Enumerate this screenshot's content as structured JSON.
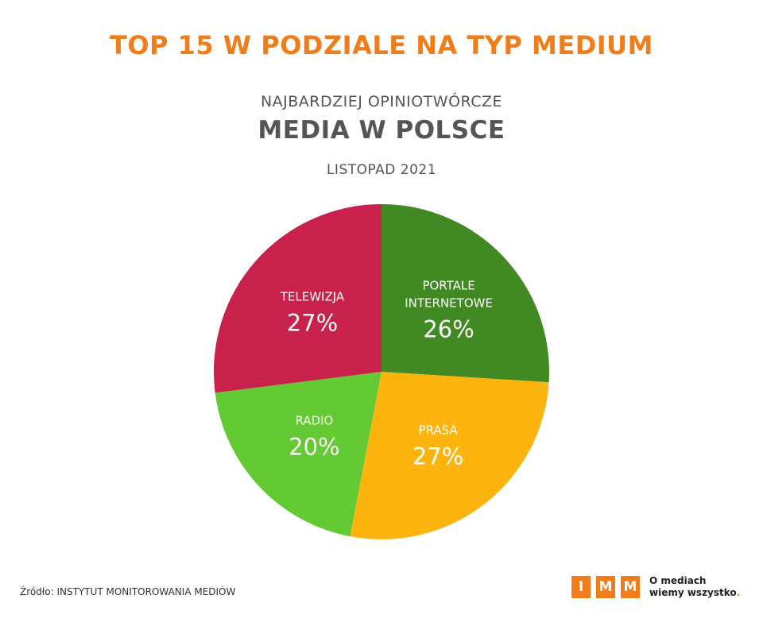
{
  "header": {
    "title": "TOP 15 W PODZIALE NA TYP MEDIUM",
    "line1": "NAJBARDZIEJ OPINIOTWÓRCZE",
    "line2": "MEDIA W POLSCE",
    "line3": "LISTOPAD 2021"
  },
  "chart_data": {
    "type": "pie",
    "slices": [
      {
        "label_lines": [
          "PORTALE",
          "INTERNETOWE"
        ],
        "value": 26,
        "value_label": "26%",
        "color": "#418a23"
      },
      {
        "label_lines": [
          "PRASA"
        ],
        "value": 27,
        "value_label": "27%",
        "color": "#fdb40e"
      },
      {
        "label_lines": [
          "RADIO"
        ],
        "value": 20,
        "value_label": "20%",
        "color": "#64ca34"
      },
      {
        "label_lines": [
          "TELEWIZJA"
        ],
        "value": 27,
        "value_label": "27%",
        "color": "#c8214b"
      }
    ],
    "start": "top",
    "direction": "clockwise"
  },
  "footer": {
    "source": "Źródło: INSTYTUT MONITOROWANIA MEDIÓW",
    "logo_letters": [
      "I",
      "M",
      "M"
    ],
    "logo_color": "#f07d1a",
    "tagline_line1": "O mediach",
    "tagline_line2": "wiemy wszystko",
    "tagline_dot": "."
  }
}
